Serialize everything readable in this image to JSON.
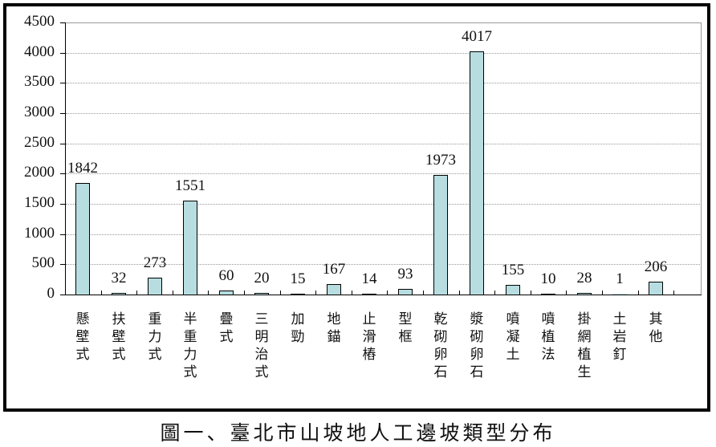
{
  "caption": "圖一、臺北市山坡地人工邊坡類型分布",
  "colors": {
    "bar_fill": "#b7dde0",
    "bar_border": "#000000",
    "frame": "#000000",
    "grid": "#999999"
  },
  "chart_data": {
    "type": "bar",
    "title": "圖一、臺北市山坡地人工邊坡類型分布",
    "xlabel": "",
    "ylabel": "",
    "ylim": [
      0,
      4500
    ],
    "yticks": [
      0,
      500,
      1000,
      1500,
      2000,
      2500,
      3000,
      3500,
      4000,
      4500
    ],
    "grid": true,
    "legend": null,
    "categories": [
      "懸壁式",
      "扶壁式",
      "重力式",
      "半重力式",
      "疊式",
      "三明治式",
      "加勁",
      "地錨",
      "止滑樁",
      "型框",
      "乾砌卵石",
      "漿砌卵石",
      "噴凝土",
      "噴植法",
      "掛網植生",
      "土岩釘",
      "其他"
    ],
    "values": [
      1842,
      32,
      273,
      1551,
      60,
      20,
      15,
      167,
      14,
      93,
      1973,
      4017,
      155,
      10,
      28,
      1,
      206
    ]
  },
  "yaxis": {
    "labels": [
      "0",
      "500",
      "1000",
      "1500",
      "2000",
      "2500",
      "3000",
      "3500",
      "4000",
      "4500"
    ]
  },
  "bars": [
    {
      "label": "懸壁式",
      "value": "1842"
    },
    {
      "label": "扶壁式",
      "value": "32"
    },
    {
      "label": "重力式",
      "value": "273"
    },
    {
      "label": "半重力式",
      "value": "1551"
    },
    {
      "label": "疊式",
      "value": "60"
    },
    {
      "label": "三明治式",
      "value": "20"
    },
    {
      "label": "加勁",
      "value": "15"
    },
    {
      "label": "地錨",
      "value": "167"
    },
    {
      "label": "止滑樁",
      "value": "14"
    },
    {
      "label": "型框",
      "value": "93"
    },
    {
      "label": "乾砌卵石",
      "value": "1973"
    },
    {
      "label": "漿砌卵石",
      "value": "4017"
    },
    {
      "label": "噴凝土",
      "value": "155"
    },
    {
      "label": "噴植法",
      "value": "10"
    },
    {
      "label": "掛網植生",
      "value": "28"
    },
    {
      "label": "土岩釘",
      "value": "1"
    },
    {
      "label": "其他",
      "value": "206"
    }
  ]
}
